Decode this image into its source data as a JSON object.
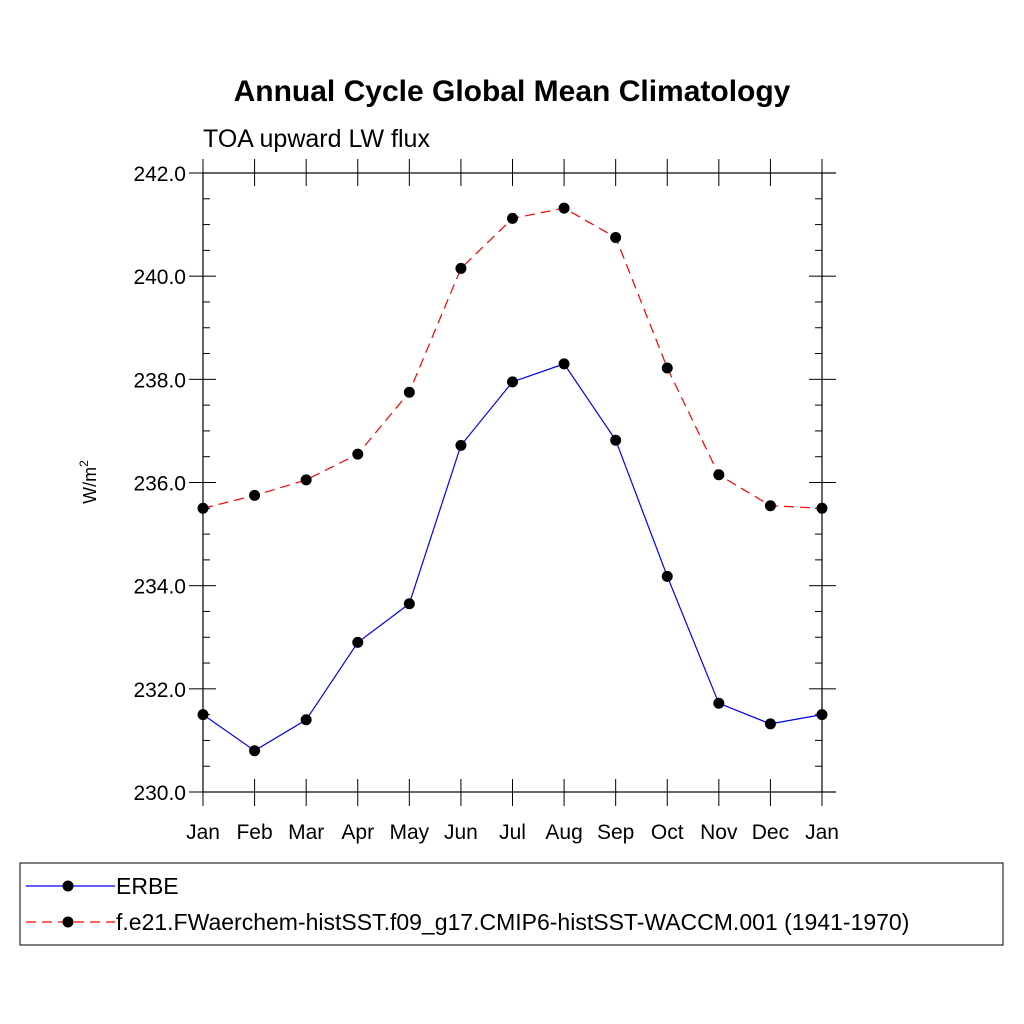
{
  "chart_data": {
    "type": "line",
    "title": "Annual Cycle Global Mean Climatology",
    "subtitle": "TOA upward LW flux",
    "ylabel": "W/m",
    "ylabel_superscript": "2",
    "xlabel": "",
    "categories": [
      "Jan",
      "Feb",
      "Mar",
      "Apr",
      "May",
      "Jun",
      "Jul",
      "Aug",
      "Sep",
      "Oct",
      "Nov",
      "Dec",
      "Jan"
    ],
    "ylim": [
      230.0,
      242.0
    ],
    "yticks": [
      "230.0",
      "232.0",
      "234.0",
      "236.0",
      "238.0",
      "240.0",
      "242.0"
    ],
    "grid": false,
    "legend_position": "bottom",
    "series": [
      {
        "name": "ERBE",
        "color": "#0000ff",
        "dash": "solid",
        "marker": "filled-circle",
        "values": [
          231.5,
          230.8,
          231.4,
          232.9,
          233.65,
          236.72,
          237.95,
          238.3,
          236.82,
          234.18,
          231.72,
          231.32,
          231.5
        ]
      },
      {
        "name": "f.e21.FWaerchem-histSST.f09_g17.CMIP6-histSST-WACCM.001 (1941-1970)",
        "color": "#ff0000",
        "dash": "dashed",
        "marker": "filled-circle",
        "values": [
          235.5,
          235.75,
          236.05,
          236.55,
          237.75,
          240.15,
          241.12,
          241.32,
          240.75,
          238.22,
          236.15,
          235.55,
          235.5
        ]
      }
    ]
  }
}
